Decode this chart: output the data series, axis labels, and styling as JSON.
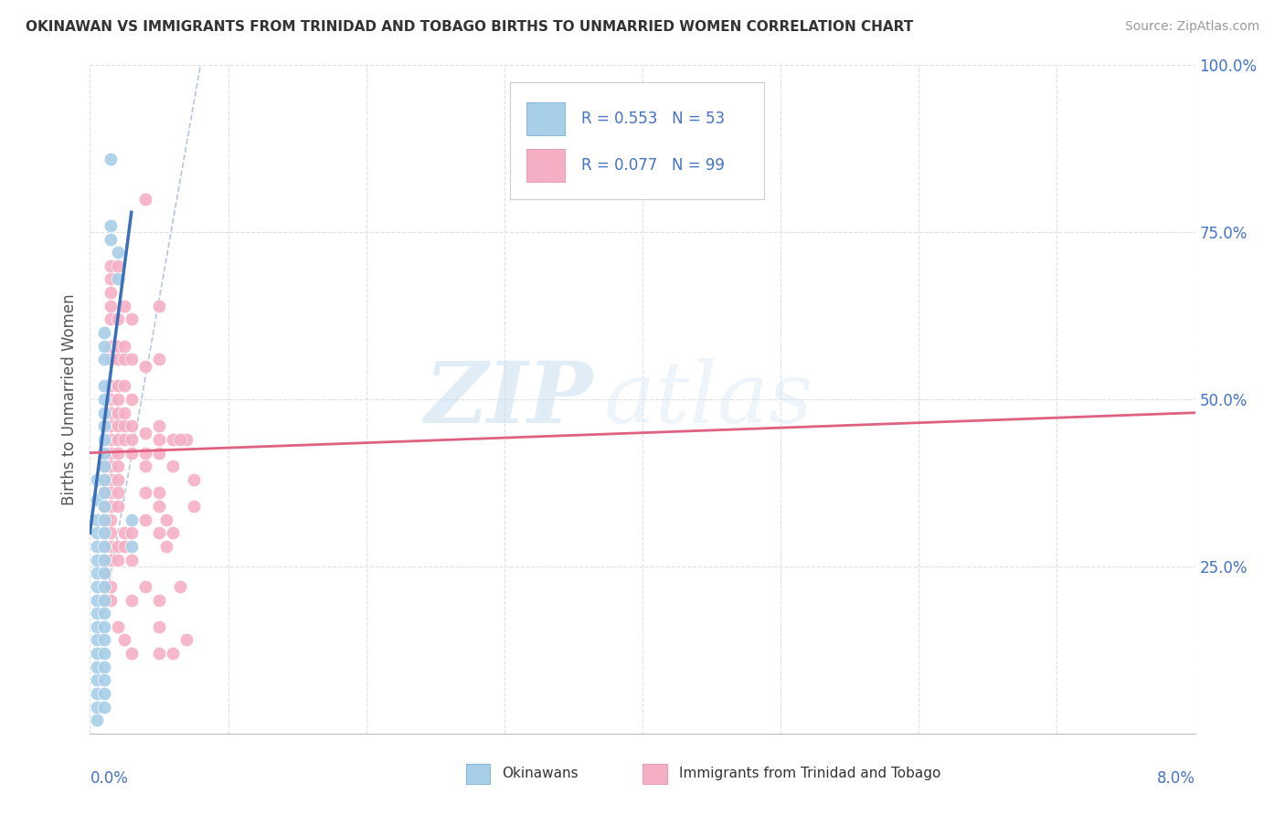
{
  "title": "OKINAWAN VS IMMIGRANTS FROM TRINIDAD AND TOBAGO BIRTHS TO UNMARRIED WOMEN CORRELATION CHART",
  "source": "Source: ZipAtlas.com",
  "ylabel": "Births to Unmarried Women",
  "xmin": 0.0,
  "xmax": 0.08,
  "ymin": 0.0,
  "ymax": 1.0,
  "legend_label1": "Okinawans",
  "legend_label2": "Immigrants from Trinidad and Tobago",
  "blue_color": "#a8cfe8",
  "pink_color": "#f4afc4",
  "blue_line_color": "#3a6fba",
  "pink_line_color": "#e06080",
  "dash_line_color": "#a0b8d8",
  "blue_scatter": [
    [
      0.0005,
      0.38
    ],
    [
      0.0005,
      0.35
    ],
    [
      0.0005,
      0.32
    ],
    [
      0.0005,
      0.3
    ],
    [
      0.0005,
      0.28
    ],
    [
      0.0005,
      0.26
    ],
    [
      0.0005,
      0.24
    ],
    [
      0.0005,
      0.22
    ],
    [
      0.0005,
      0.2
    ],
    [
      0.0005,
      0.18
    ],
    [
      0.0005,
      0.16
    ],
    [
      0.0005,
      0.14
    ],
    [
      0.0005,
      0.12
    ],
    [
      0.0005,
      0.1
    ],
    [
      0.0005,
      0.08
    ],
    [
      0.0005,
      0.06
    ],
    [
      0.0005,
      0.04
    ],
    [
      0.0005,
      0.02
    ],
    [
      0.001,
      0.6
    ],
    [
      0.001,
      0.58
    ],
    [
      0.001,
      0.56
    ],
    [
      0.001,
      0.52
    ],
    [
      0.001,
      0.5
    ],
    [
      0.001,
      0.48
    ],
    [
      0.001,
      0.46
    ],
    [
      0.001,
      0.44
    ],
    [
      0.001,
      0.42
    ],
    [
      0.001,
      0.4
    ],
    [
      0.001,
      0.38
    ],
    [
      0.001,
      0.36
    ],
    [
      0.001,
      0.34
    ],
    [
      0.001,
      0.32
    ],
    [
      0.001,
      0.3
    ],
    [
      0.001,
      0.28
    ],
    [
      0.001,
      0.26
    ],
    [
      0.001,
      0.24
    ],
    [
      0.001,
      0.22
    ],
    [
      0.001,
      0.2
    ],
    [
      0.001,
      0.18
    ],
    [
      0.001,
      0.16
    ],
    [
      0.001,
      0.14
    ],
    [
      0.001,
      0.12
    ],
    [
      0.001,
      0.1
    ],
    [
      0.001,
      0.08
    ],
    [
      0.001,
      0.06
    ],
    [
      0.001,
      0.04
    ],
    [
      0.002,
      0.72
    ],
    [
      0.002,
      0.68
    ],
    [
      0.0015,
      0.86
    ],
    [
      0.0015,
      0.76
    ],
    [
      0.0015,
      0.74
    ],
    [
      0.003,
      0.32
    ],
    [
      0.003,
      0.28
    ]
  ],
  "pink_scatter": [
    [
      0.001,
      0.42
    ],
    [
      0.001,
      0.4
    ],
    [
      0.001,
      0.38
    ],
    [
      0.001,
      0.36
    ],
    [
      0.001,
      0.34
    ],
    [
      0.001,
      0.32
    ],
    [
      0.001,
      0.3
    ],
    [
      0.001,
      0.28
    ],
    [
      0.001,
      0.26
    ],
    [
      0.001,
      0.24
    ],
    [
      0.001,
      0.22
    ],
    [
      0.001,
      0.2
    ],
    [
      0.0015,
      0.7
    ],
    [
      0.0015,
      0.68
    ],
    [
      0.0015,
      0.66
    ],
    [
      0.0015,
      0.64
    ],
    [
      0.0015,
      0.62
    ],
    [
      0.0015,
      0.58
    ],
    [
      0.0015,
      0.56
    ],
    [
      0.0015,
      0.52
    ],
    [
      0.0015,
      0.5
    ],
    [
      0.0015,
      0.48
    ],
    [
      0.0015,
      0.46
    ],
    [
      0.0015,
      0.44
    ],
    [
      0.0015,
      0.42
    ],
    [
      0.0015,
      0.4
    ],
    [
      0.0015,
      0.38
    ],
    [
      0.0015,
      0.36
    ],
    [
      0.0015,
      0.34
    ],
    [
      0.0015,
      0.32
    ],
    [
      0.0015,
      0.3
    ],
    [
      0.0015,
      0.28
    ],
    [
      0.0015,
      0.26
    ],
    [
      0.0015,
      0.22
    ],
    [
      0.0015,
      0.2
    ],
    [
      0.002,
      0.7
    ],
    [
      0.002,
      0.62
    ],
    [
      0.002,
      0.58
    ],
    [
      0.002,
      0.56
    ],
    [
      0.002,
      0.52
    ],
    [
      0.002,
      0.5
    ],
    [
      0.002,
      0.48
    ],
    [
      0.002,
      0.46
    ],
    [
      0.002,
      0.44
    ],
    [
      0.002,
      0.42
    ],
    [
      0.002,
      0.4
    ],
    [
      0.002,
      0.38
    ],
    [
      0.002,
      0.36
    ],
    [
      0.002,
      0.34
    ],
    [
      0.002,
      0.28
    ],
    [
      0.002,
      0.16
    ],
    [
      0.0025,
      0.64
    ],
    [
      0.0025,
      0.58
    ],
    [
      0.0025,
      0.56
    ],
    [
      0.0025,
      0.52
    ],
    [
      0.0025,
      0.48
    ],
    [
      0.0025,
      0.46
    ],
    [
      0.0025,
      0.44
    ],
    [
      0.0025,
      0.3
    ],
    [
      0.0025,
      0.28
    ],
    [
      0.0025,
      0.14
    ],
    [
      0.003,
      0.62
    ],
    [
      0.003,
      0.56
    ],
    [
      0.003,
      0.5
    ],
    [
      0.003,
      0.46
    ],
    [
      0.003,
      0.44
    ],
    [
      0.003,
      0.42
    ],
    [
      0.003,
      0.3
    ],
    [
      0.003,
      0.2
    ],
    [
      0.003,
      0.12
    ],
    [
      0.004,
      0.8
    ],
    [
      0.004,
      0.55
    ],
    [
      0.004,
      0.45
    ],
    [
      0.004,
      0.42
    ],
    [
      0.004,
      0.4
    ],
    [
      0.004,
      0.36
    ],
    [
      0.004,
      0.32
    ],
    [
      0.005,
      0.64
    ],
    [
      0.005,
      0.56
    ],
    [
      0.005,
      0.46
    ],
    [
      0.005,
      0.44
    ],
    [
      0.005,
      0.42
    ],
    [
      0.005,
      0.36
    ],
    [
      0.005,
      0.34
    ],
    [
      0.005,
      0.3
    ],
    [
      0.005,
      0.2
    ],
    [
      0.005,
      0.16
    ],
    [
      0.005,
      0.12
    ],
    [
      0.006,
      0.44
    ],
    [
      0.006,
      0.4
    ],
    [
      0.0055,
      0.32
    ],
    [
      0.0055,
      0.28
    ],
    [
      0.006,
      0.3
    ],
    [
      0.006,
      0.12
    ],
    [
      0.007,
      0.14
    ],
    [
      0.0065,
      0.22
    ],
    [
      0.007,
      0.44
    ],
    [
      0.0075,
      0.38
    ],
    [
      0.0075,
      0.34
    ],
    [
      0.003,
      0.26
    ],
    [
      0.002,
      0.26
    ],
    [
      0.004,
      0.22
    ],
    [
      0.0065,
      0.44
    ]
  ],
  "blue_line_x": [
    0.0,
    0.003
  ],
  "blue_line_y": [
    0.3,
    0.78
  ],
  "pink_line_x": [
    0.0,
    0.08
  ],
  "pink_line_y": [
    0.42,
    0.48
  ],
  "dash_line_x": [
    0.001,
    0.008
  ],
  "dash_line_y": [
    0.18,
    1.0
  ],
  "bg_color": "#ffffff",
  "grid_color": "#e0e0e0",
  "title_fontsize": 11,
  "source_fontsize": 10,
  "ytick_color": "#4472c4",
  "xtick_color": "#4472c4"
}
